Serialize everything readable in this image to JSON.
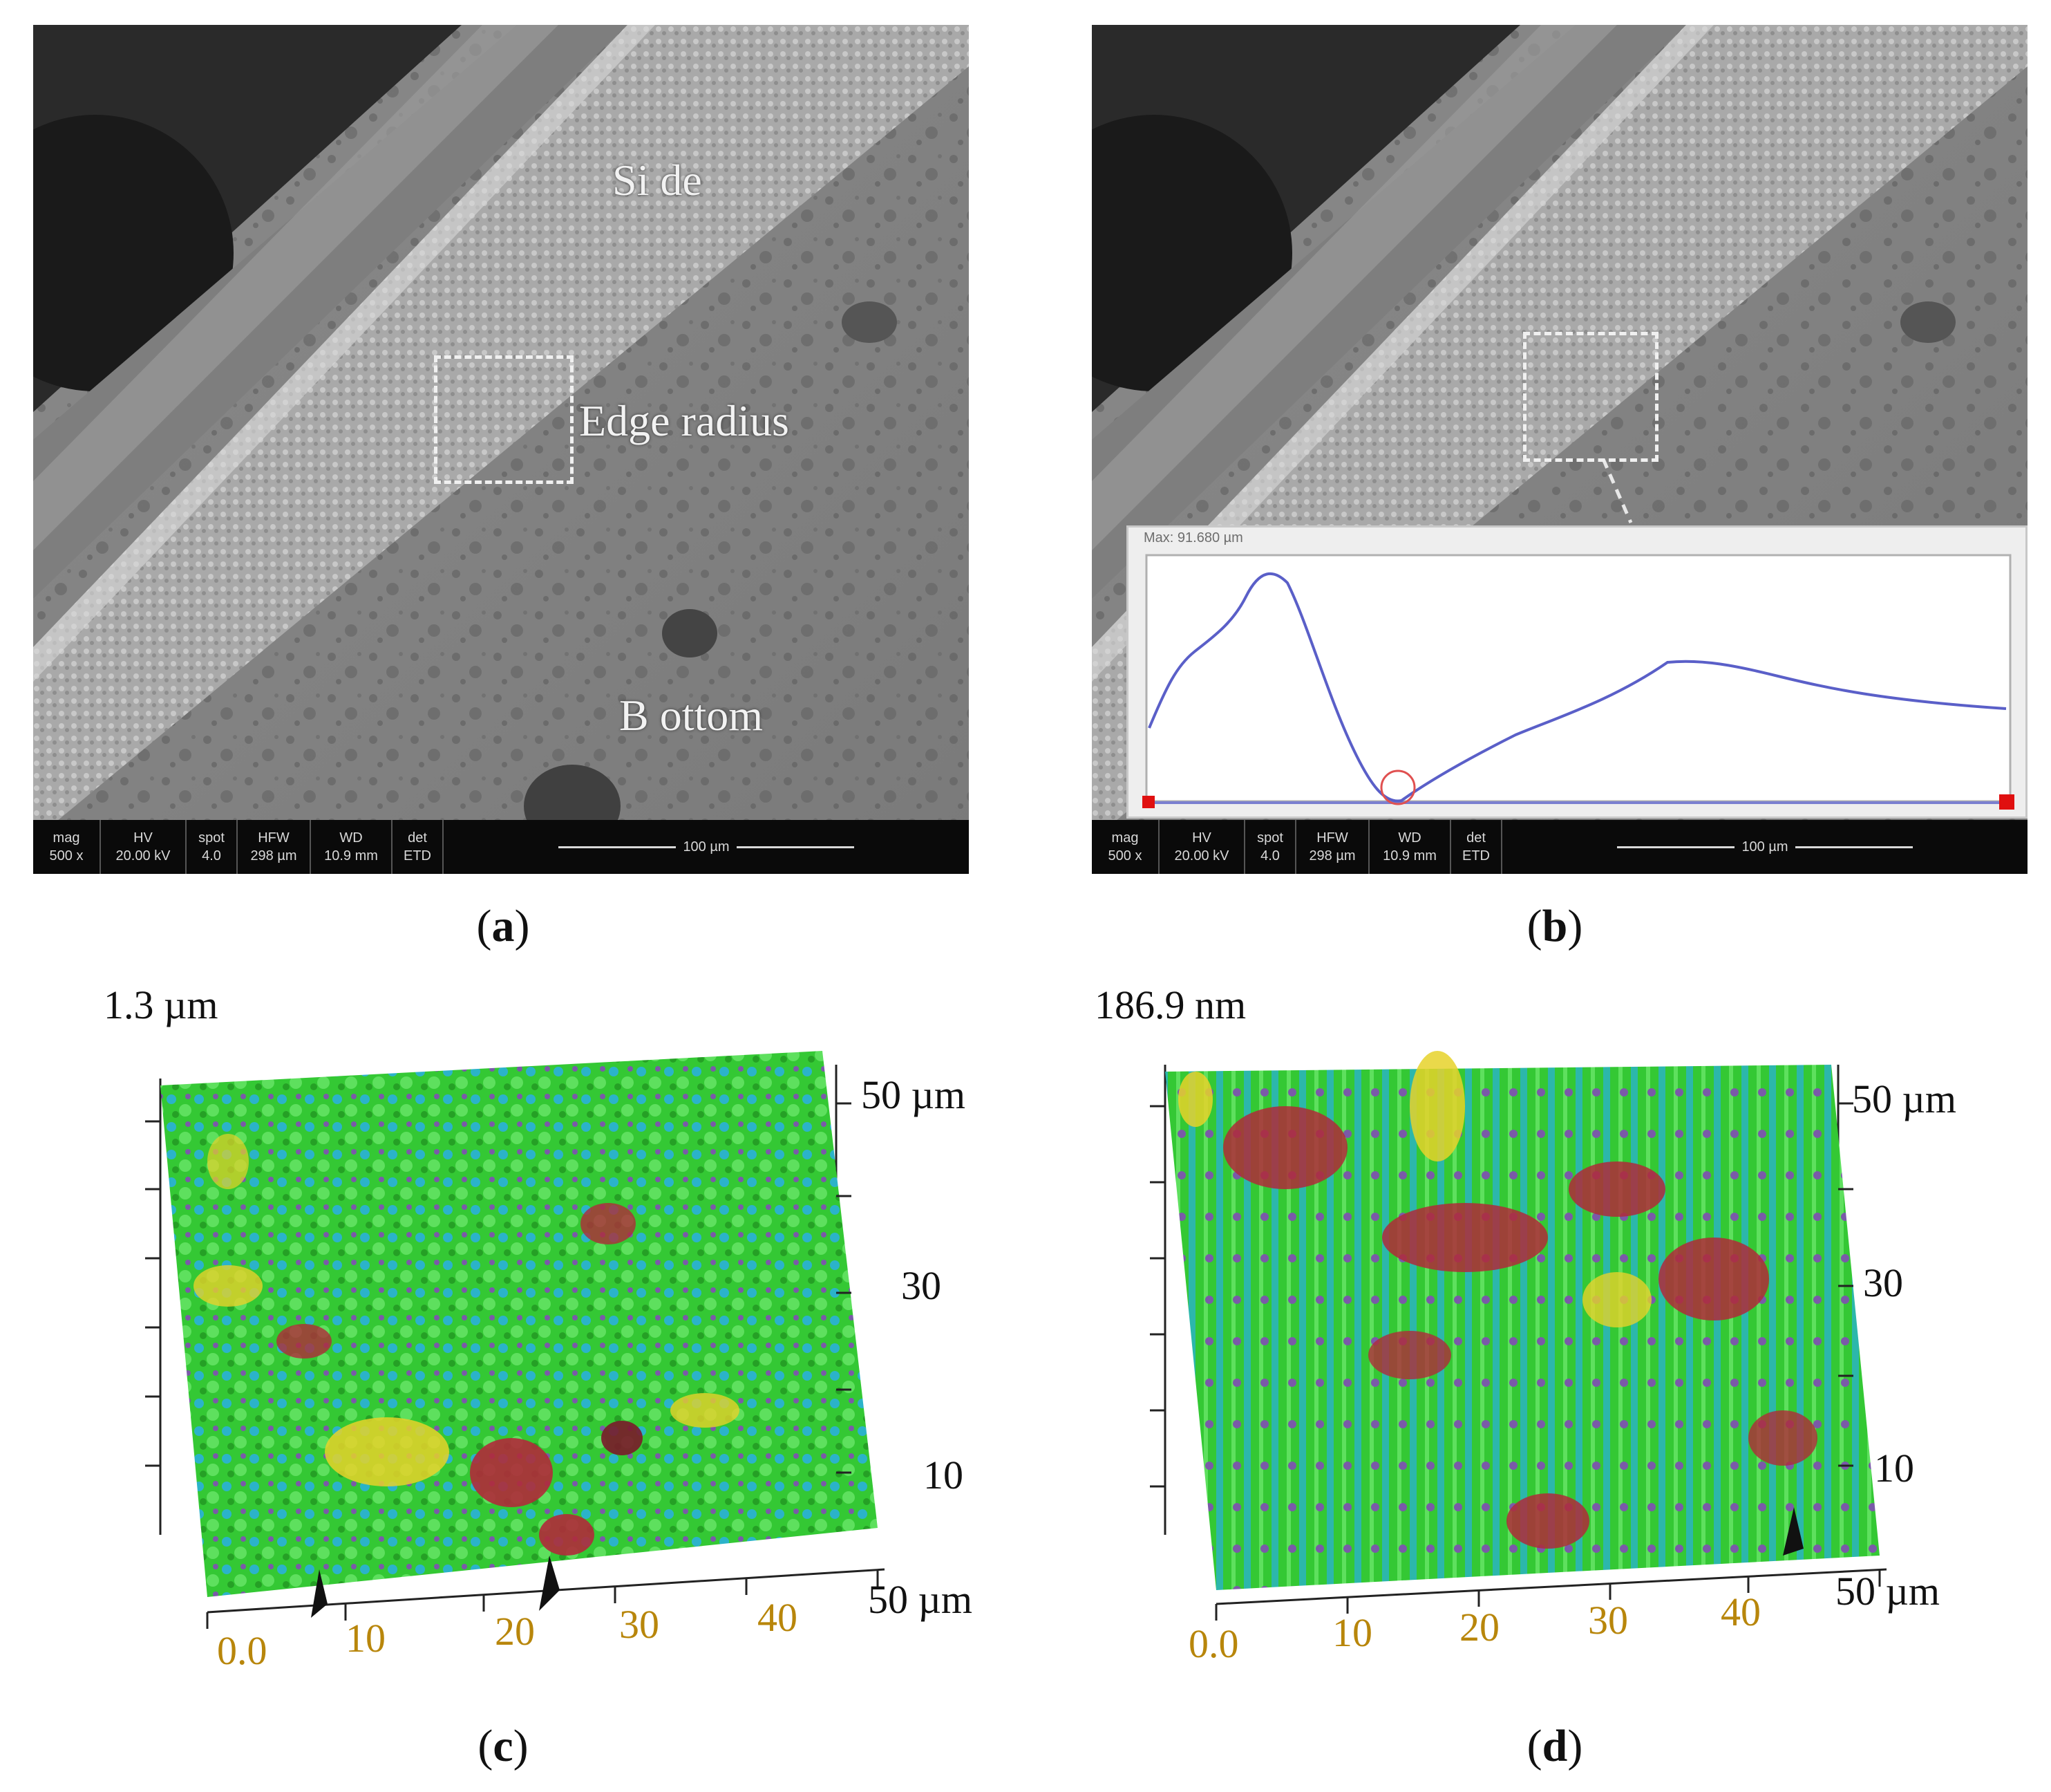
{
  "panels": {
    "a": {
      "caption_open": "(",
      "caption_letter": "a",
      "caption_close": ")",
      "labels": {
        "side": "Si de",
        "edge": "Edge radius",
        "bottom": "B ottom"
      },
      "infobar": {
        "headers": [
          "mag",
          "HV",
          "spot",
          "HFW",
          "WD",
          "det"
        ],
        "values": [
          "500 x",
          "20.00 kV",
          "4.0",
          "298 µm",
          "10.9 mm",
          "ETD"
        ],
        "scale": "100 µm"
      }
    },
    "b": {
      "caption_open": "(",
      "caption_letter": "b",
      "caption_close": ")",
      "profile_max": "Max: 91.680 µm",
      "infobar": {
        "headers": [
          "mag",
          "HV",
          "spot",
          "HFW",
          "WD",
          "det"
        ],
        "values": [
          "500 x",
          "20.00 kV",
          "4.0",
          "298 µm",
          "10.9 mm",
          "ETD"
        ],
        "scale": "100 µm"
      }
    },
    "c": {
      "caption_open": "(",
      "caption_letter": "c",
      "caption_close": ")",
      "z_max": "1.3 µm",
      "y_ticks": [
        "50 µm",
        "30",
        "10"
      ],
      "x_ticks": [
        "0.0",
        "10",
        "20",
        "30",
        "40",
        "50 µm"
      ]
    },
    "d": {
      "caption_open": "(",
      "caption_letter": "d",
      "caption_close": ")",
      "z_max": "186.9 nm",
      "y_ticks": [
        "50 µm",
        "30",
        "10"
      ],
      "x_ticks": [
        "0.0",
        "10",
        "20",
        "30",
        "40",
        "50 µm"
      ]
    }
  },
  "colors": {
    "profile_line": "#5a5fc8",
    "afm_green": "#2ecc2e",
    "afm_cyan": "#2bb3c9",
    "afm_red": "#b02a3a",
    "afm_yellow": "#e6d22a"
  }
}
